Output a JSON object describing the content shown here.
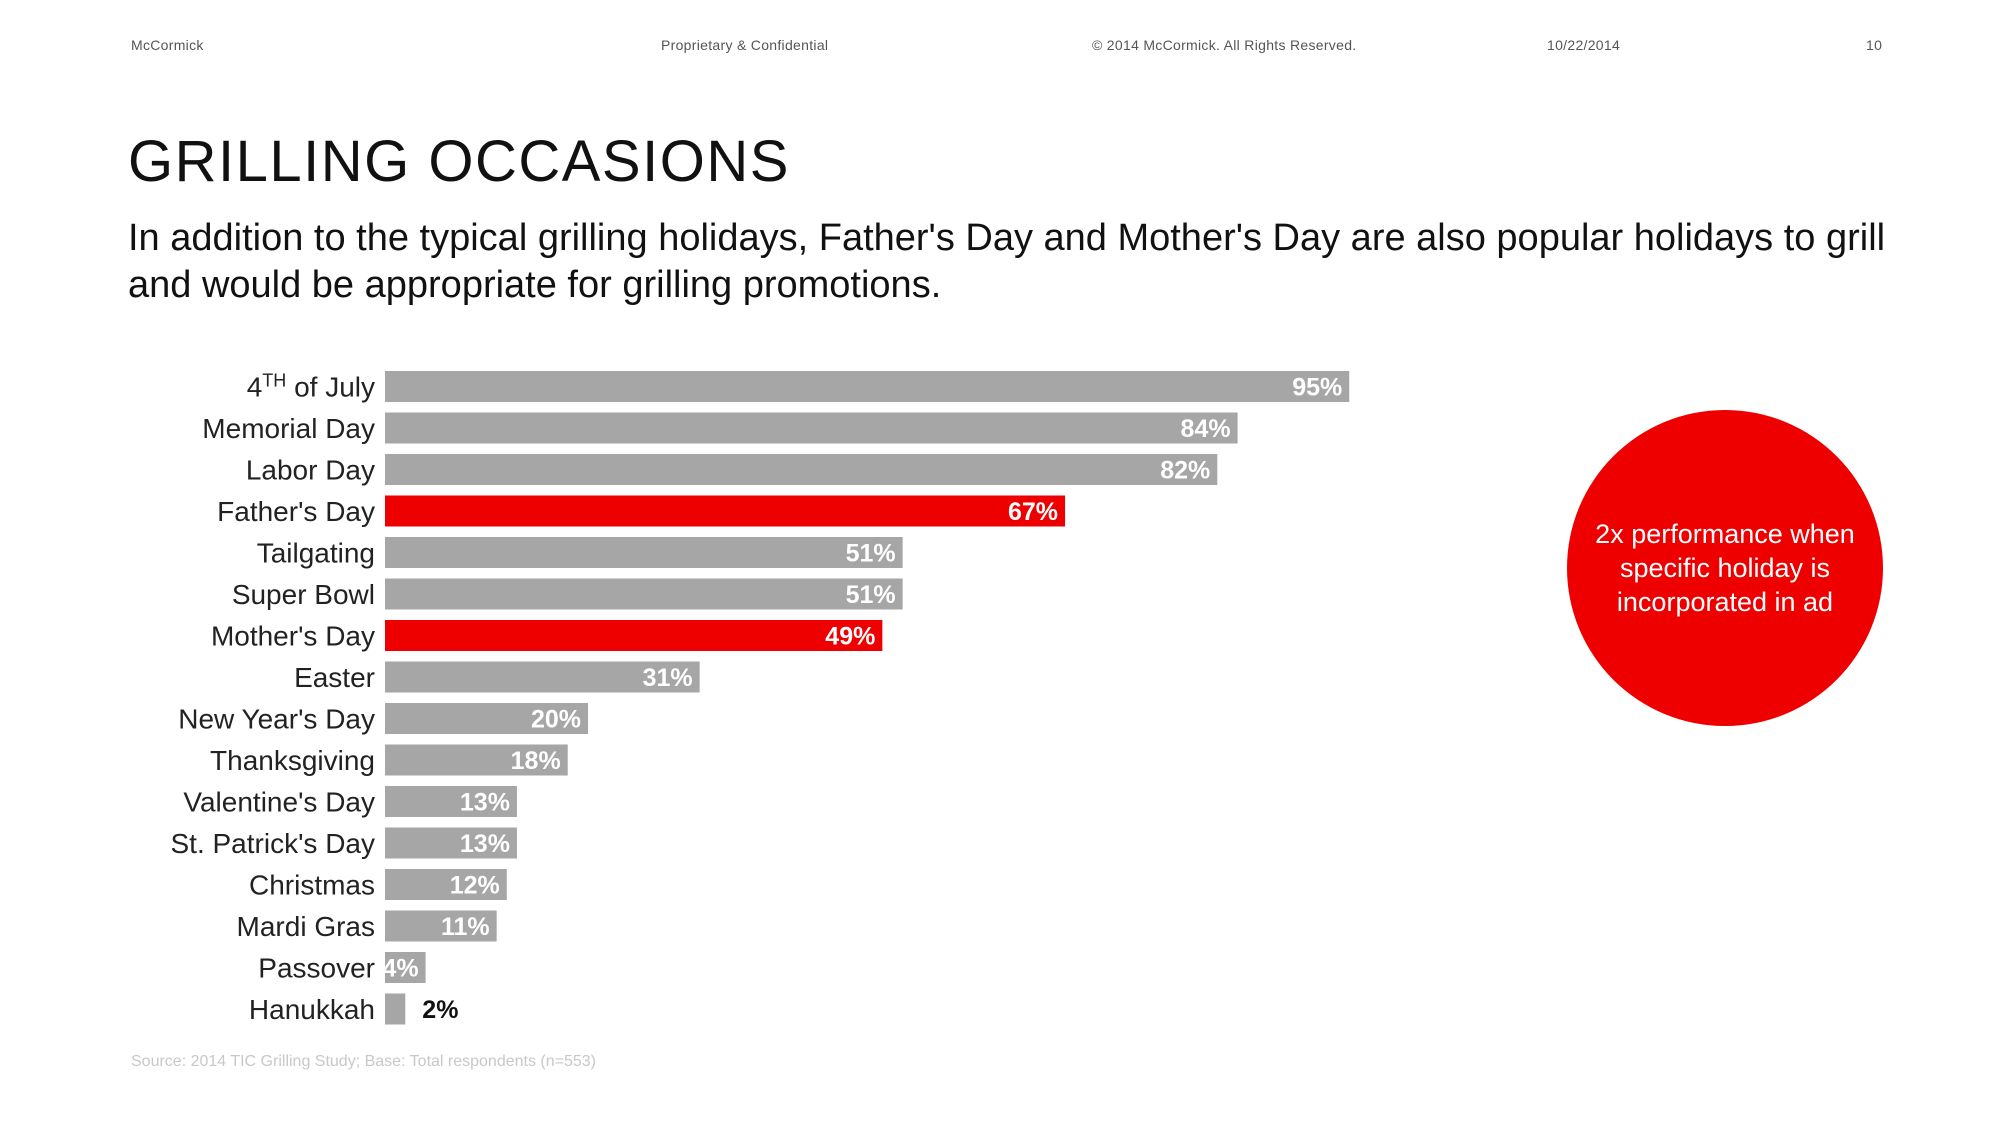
{
  "header": {
    "company": "McCormick",
    "confidentiality": "Proprietary & Confidential",
    "copyright": "© 2014 McCormick. All Rights Reserved.",
    "date": "10/22/2014",
    "page_number": "10"
  },
  "title": "GRILLING OCCASIONS",
  "subtitle": "In addition to the typical grilling holidays, Father's Day and Mother's Day are also popular holidays to grill and would be appropriate for grilling promotions.",
  "callout": "2x performance when specific holiday is incorporated in ad",
  "source": "Source: 2014 TIC Grilling Study; Base: Total respondents (n=553)",
  "colors": {
    "bar_default": "#a6a6a6",
    "bar_highlight": "#ee0000",
    "callout": "#ee0000"
  },
  "chart_data": {
    "type": "bar",
    "orientation": "horizontal",
    "categories": [
      "4TH of July",
      "Memorial Day",
      "Labor Day",
      "Father's Day",
      "Tailgating",
      "Super Bowl",
      "Mother's Day",
      "Easter",
      "New Year's Day",
      "Thanksgiving",
      "Valentine's Day",
      "St. Patrick's Day",
      "Christmas",
      "Mardi Gras",
      "Passover",
      "Hanukkah"
    ],
    "values": [
      95,
      84,
      82,
      67,
      51,
      51,
      49,
      31,
      20,
      18,
      13,
      13,
      12,
      11,
      4,
      2
    ],
    "labels": [
      "95%",
      "84%",
      "82%",
      "67%",
      "51%",
      "51%",
      "49%",
      "31%",
      "20%",
      "18%",
      "13%",
      "13%",
      "12%",
      "11%",
      "4%",
      "2%"
    ],
    "highlighted": [
      "Father's Day",
      "Mother's Day"
    ],
    "unit": "%",
    "xlim": [
      0,
      100
    ],
    "title": "",
    "xlabel": "",
    "ylabel": ""
  }
}
